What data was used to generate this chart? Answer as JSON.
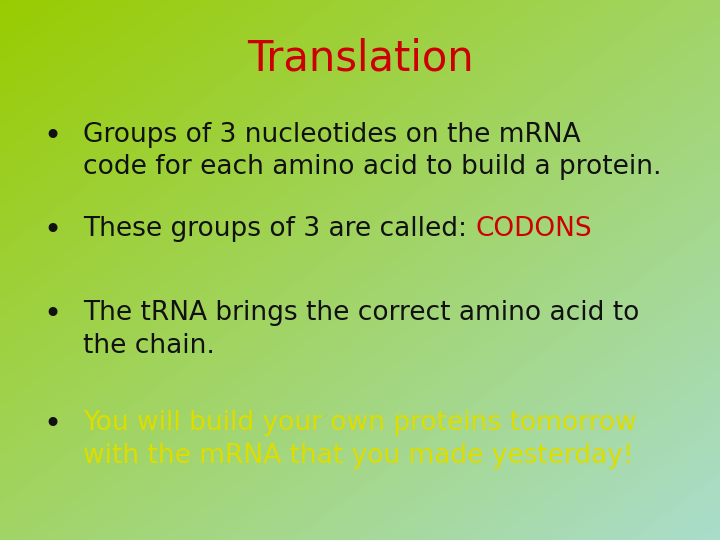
{
  "title": "Translation",
  "title_color": "#cc0000",
  "title_fontsize": 30,
  "bg_color_topleft": "#99cc00",
  "bg_color_bottomright": "#aaddcc",
  "bullet_points": [
    {
      "parts": [
        {
          "text": "Groups of 3 nucleotides on the mRNA\ncode for each amino acid to build a protein.",
          "color": "#111111",
          "bold": false
        }
      ]
    },
    {
      "parts": [
        {
          "text": "These groups of 3 are called: ",
          "color": "#111111",
          "bold": false
        },
        {
          "text": "CODONS",
          "color": "#cc0000",
          "bold": false
        }
      ]
    },
    {
      "parts": [
        {
          "text": "The tRNA brings the correct amino acid to\nthe chain.",
          "color": "#111111",
          "bold": false
        }
      ]
    },
    {
      "parts": [
        {
          "text": "You will build your own proteins tomorrow\nwith the mRNA that you made yesterday!",
          "color": "#dddd00",
          "bold": false
        }
      ]
    }
  ],
  "bullet_color": "#111111",
  "bullet_fontsize": 19,
  "figsize": [
    7.2,
    5.4
  ],
  "dpi": 100
}
